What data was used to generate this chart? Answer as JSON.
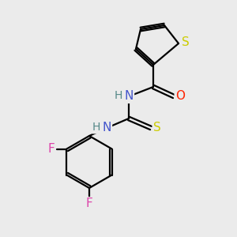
{
  "background_color": "#ebebeb",
  "bond_color": "#000000",
  "atom_colors": {
    "S_thiophene": "#cccc00",
    "S_thio": "#cccc00",
    "N": "#4455cc",
    "O": "#ff2200",
    "F": "#dd44aa",
    "H": "#558888",
    "C": "#000000"
  },
  "font_size": 11,
  "lw": 1.6
}
